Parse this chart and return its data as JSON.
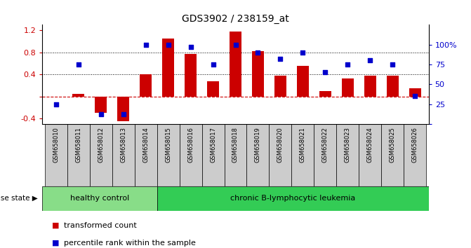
{
  "title": "GDS3902 / 238159_at",
  "samples": [
    "GSM658010",
    "GSM658011",
    "GSM658012",
    "GSM658013",
    "GSM658014",
    "GSM658015",
    "GSM658016",
    "GSM658017",
    "GSM658018",
    "GSM658019",
    "GSM658020",
    "GSM658021",
    "GSM658022",
    "GSM658023",
    "GSM658024",
    "GSM658025",
    "GSM658026"
  ],
  "transformed_count": [
    0.0,
    0.05,
    -0.3,
    -0.45,
    0.4,
    1.05,
    0.77,
    0.28,
    1.18,
    0.82,
    0.38,
    0.55,
    0.1,
    0.32,
    0.38,
    0.38,
    0.15
  ],
  "percentile_rank": [
    25,
    75,
    12,
    12,
    100,
    100,
    97,
    75,
    100,
    90,
    82,
    90,
    65,
    75,
    80,
    75,
    35
  ],
  "healthy_control_count": 5,
  "disease_group_label": "chronic B-lymphocytic leukemia",
  "healthy_group_label": "healthy control",
  "disease_state_label": "disease state",
  "legend_bar": "transformed count",
  "legend_dot": "percentile rank within the sample",
  "ylim_left": [
    -0.5,
    1.3
  ],
  "ylim_right": [
    0,
    125
  ],
  "yticks_left": [
    -0.4,
    0.0,
    0.4,
    0.8,
    1.2
  ],
  "yticks_right": [
    0,
    25,
    50,
    75,
    100
  ],
  "bar_color": "#cc0000",
  "dot_color": "#0000cc",
  "healthy_bg": "#88dd88",
  "disease_bg": "#33cc55",
  "sample_bg": "#cccccc",
  "zero_line_color": "#cc0000",
  "right_axis_color": "#0000cc",
  "left_axis_color": "#cc0000",
  "bg_white": "#ffffff"
}
